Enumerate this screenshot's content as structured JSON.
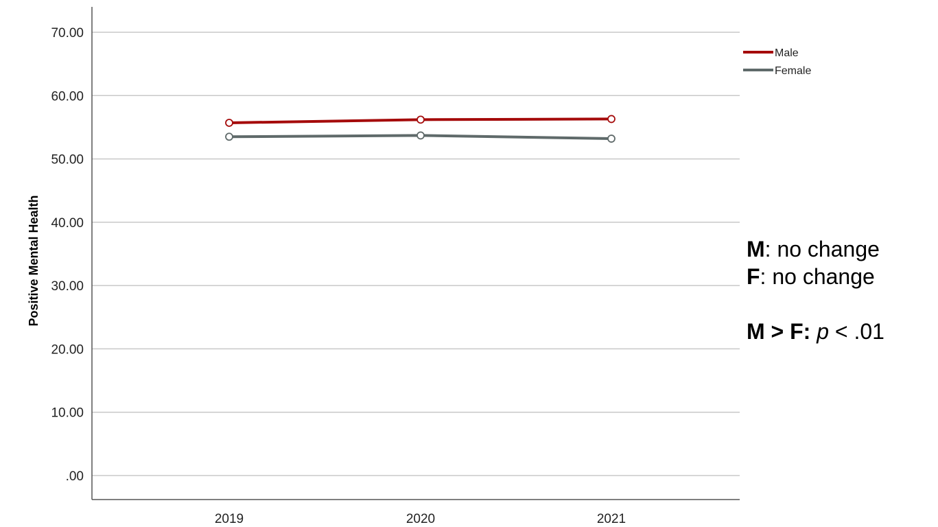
{
  "chart_data": {
    "type": "line",
    "title": "",
    "xlabel": "",
    "ylabel": "Positive Mental Health",
    "categories": [
      "2019",
      "2020",
      "2021"
    ],
    "ylim": [
      0,
      70
    ],
    "y_ticks": [
      ".00",
      "10.00",
      "20.00",
      "30.00",
      "40.00",
      "50.00",
      "60.00",
      "70.00"
    ],
    "y_tick_values": [
      0,
      10,
      20,
      30,
      40,
      50,
      60,
      70
    ],
    "grid": "horizontal",
    "legend_position": "top-right",
    "series": [
      {
        "name": "Male",
        "values": [
          55.7,
          56.2,
          56.3
        ],
        "color": "#a50b0b"
      },
      {
        "name": "Female",
        "values": [
          53.5,
          53.7,
          53.2
        ],
        "color": "#5f6a6a"
      }
    ]
  },
  "annotations": {
    "m_label": "M",
    "m_text": ": no change",
    "f_label": "F",
    "f_text": ": no change",
    "comparison_label": "M > F:",
    "p_symbol": "p",
    "p_text": " < .01"
  }
}
